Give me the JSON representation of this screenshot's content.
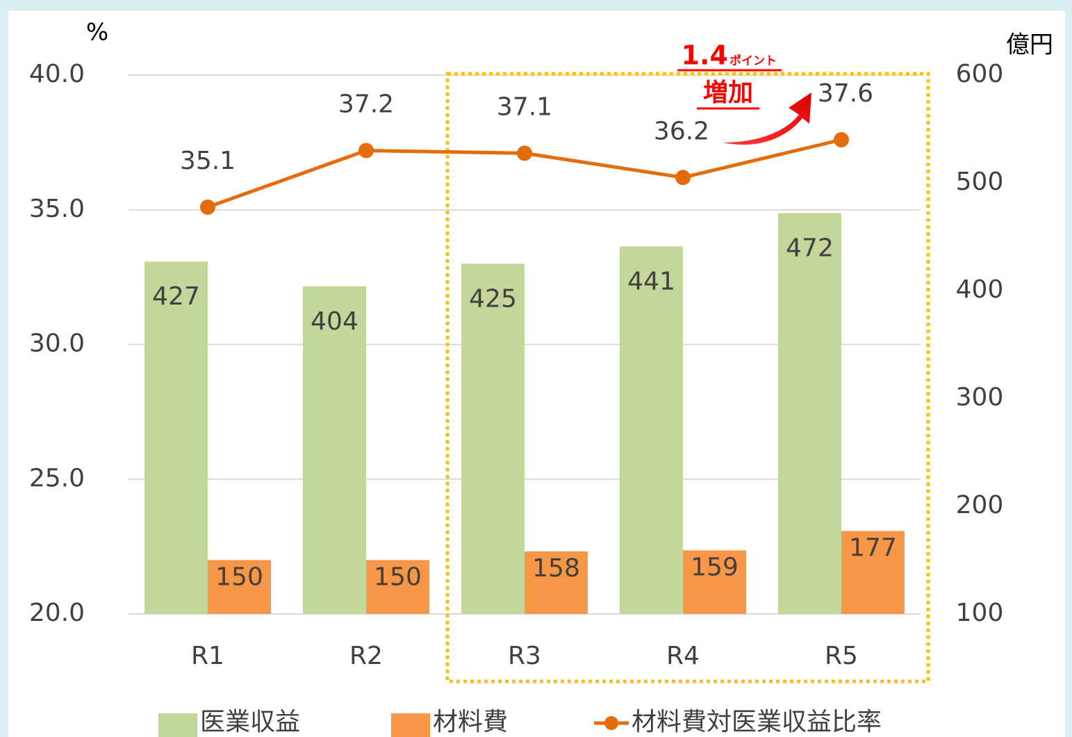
{
  "chart_data": {
    "type": "bar",
    "categories": [
      "R1",
      "R2",
      "R3",
      "R4",
      "R5"
    ],
    "y_label": "%",
    "y2_label": "億円",
    "ylim": [
      20,
      40
    ],
    "yticks": [
      {
        "value": 20,
        "label": "20.0"
      },
      {
        "value": 25,
        "label": "25.0"
      },
      {
        "value": 30,
        "label": "30.0"
      },
      {
        "value": 35,
        "label": "35.0"
      },
      {
        "value": 40,
        "label": "40.0"
      }
    ],
    "y2lim": [
      100,
      600
    ],
    "y2ticks": [
      100,
      200,
      300,
      400,
      500,
      600
    ],
    "grid": true,
    "legend": "bottom",
    "series": [
      {
        "name": "医業収益",
        "type": "bar",
        "axis": "y2",
        "color": "#c4d79b",
        "values": [
          427,
          404,
          425,
          441,
          472
        ]
      },
      {
        "name": "材料費",
        "type": "bar",
        "axis": "y2",
        "color": "#f79646",
        "values": [
          150,
          150,
          158,
          159,
          177
        ]
      },
      {
        "name": "材料費対医業収益比率",
        "type": "line",
        "color": "#e46c0a",
        "values": [
          35.1,
          37.2,
          37.1,
          36.2,
          37.6
        ]
      }
    ],
    "annotations": [
      "1.4",
      "ポイント",
      "増加"
    ]
  }
}
